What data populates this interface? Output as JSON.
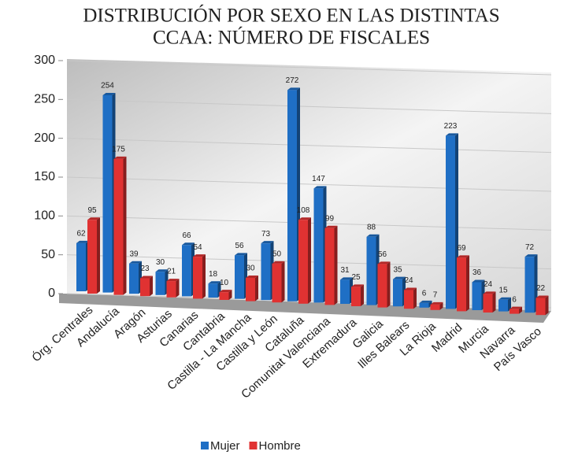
{
  "chart_data": {
    "type": "bar",
    "title": [
      "DISTRIBUCIÓN POR SEXO EN LAS DISTINTAS",
      "CCAA: NÚMERO DE FISCALES"
    ],
    "categories": [
      "Órg. Centrales",
      "Andalucía",
      "Aragón",
      "Asturias",
      "Canarias",
      "Cantabria",
      "Castilla - La Mancha",
      "Castilla y León",
      "Cataluña",
      "Comunitat Valenciana",
      "Extremadura",
      "Galicia",
      "Illes Balears",
      "La Rioja",
      "Madrid",
      "Murcia",
      "Navarra",
      "País Vasco"
    ],
    "series": [
      {
        "name": "Mujer",
        "color": "#1f6fc5",
        "values": [
          62,
          254,
          39,
          30,
          66,
          18,
          56,
          73,
          272,
          147,
          31,
          88,
          35,
          6,
          223,
          36,
          15,
          72
        ]
      },
      {
        "name": "Hombre",
        "color": "#e03232",
        "values": [
          95,
          175,
          23,
          21,
          54,
          10,
          30,
          50,
          108,
          99,
          25,
          56,
          24,
          7,
          69,
          24,
          6,
          22
        ]
      }
    ],
    "ylim": [
      0,
      300
    ],
    "yticks": [
      0,
      50,
      100,
      150,
      200,
      250,
      300
    ],
    "grid": true,
    "legend": "bottom"
  }
}
